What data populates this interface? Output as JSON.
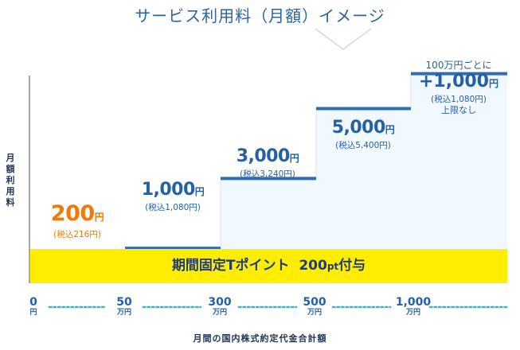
{
  "title": "サービス利用料（月額）イメージ",
  "ylabel": "月額利用料",
  "xlabel": "月間の国内株式約定代金合計額",
  "band_label": "期間固定Tポイント",
  "band_value": "200",
  "band_unit": "pt",
  "band_suffix": "付与",
  "colors": {
    "first_step": "#ee7a0a",
    "steps": "#2f6db0",
    "fill": "#f1f8ff",
    "band": "#ffee00",
    "axis_dots": "#3ab3d6"
  },
  "chart_data": {
    "type": "bar",
    "title": "サービス利用料（月額）イメージ",
    "xlabel": "月間の国内株式約定代金合計額",
    "ylabel": "月額利用料",
    "x_ticks": [
      {
        "value": "0",
        "unit": "円"
      },
      {
        "value": "50",
        "unit": "万円"
      },
      {
        "value": "300",
        "unit": "万円"
      },
      {
        "value": "500",
        "unit": "万円"
      },
      {
        "value": "1,000",
        "unit": "万円"
      }
    ],
    "categories": [
      "0〜50万円",
      "50〜300万円",
      "300〜500万円",
      "500〜1,000万円",
      "1,000万円〜"
    ],
    "values": [
      200,
      1000,
      3000,
      5000,
      6000
    ],
    "labels": [
      {
        "price": "200",
        "unit": "円",
        "tax": "(税込216円)"
      },
      {
        "price": "1,000",
        "unit": "円",
        "tax": "(税込1,080円)"
      },
      {
        "price": "3,000",
        "unit": "円",
        "tax": "(税込3,240円)"
      },
      {
        "price": "5,000",
        "unit": "円",
        "tax": "(税込5,400円)"
      },
      {
        "note": "100万円ごとに",
        "price": "+1,000",
        "unit": "円",
        "tax": "(税込1,080円)",
        "limit": "上限なし"
      }
    ]
  }
}
